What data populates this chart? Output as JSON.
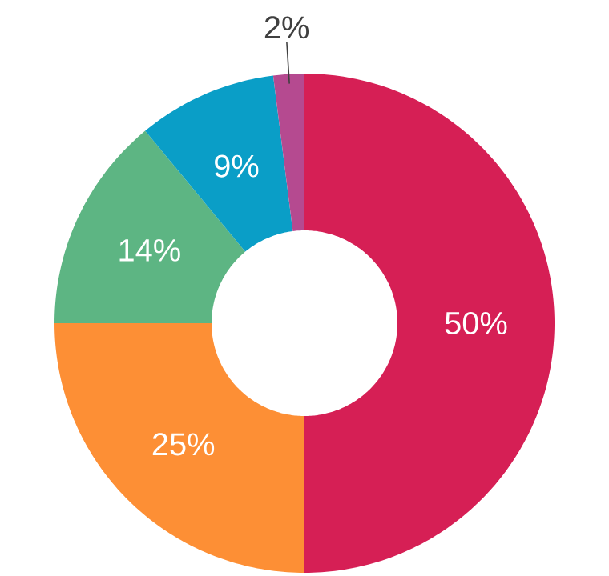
{
  "chart_data": {
    "type": "donut",
    "categories": [
      null,
      null,
      null,
      null,
      null
    ],
    "values": [
      50,
      25,
      14,
      9,
      2
    ],
    "colors": [
      "#d61f55",
      "#fd8f35",
      "#5db583",
      "#0a9ec7",
      "#b54a90"
    ],
    "value_labels": [
      "50%",
      "25%",
      "14%",
      "9%",
      "2%"
    ]
  }
}
